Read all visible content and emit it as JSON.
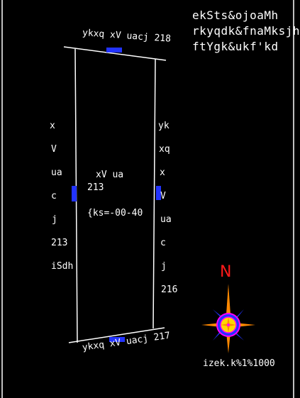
{
  "header": {
    "line1": "ekSts&ojoaMh",
    "line2": "rkyqdk&fnaMksjh",
    "line3": "ftYgk&ukf'kd"
  },
  "plot": {
    "top_boundary": "ykxq  xV  uacj  218",
    "bottom_boundary": "ykxq  xV  uacj  217",
    "center_label_1": "xV  ua",
    "center_label_2": "213",
    "area": "{ks=-00-40"
  },
  "left_side": [
    "x",
    "V",
    "ua",
    "c",
    "j",
    "213",
    "iSdh"
  ],
  "right_side": [
    "yk",
    "xq",
    "x",
    "V",
    "ua",
    "c",
    "j",
    "216"
  ],
  "compass": {
    "north_letter": "N"
  },
  "scale": "izek.k%1%1000",
  "colors": {
    "line": "#ffffff",
    "frame": "#ffffff",
    "text": "#ffffff",
    "marker": "#2233ff",
    "north": "#ff1a1a",
    "compass_arms": "#ff8800",
    "compass_diagonals": "#2233ff",
    "compass_ring": "#ff00ff",
    "compass_center": "#ffd700"
  }
}
